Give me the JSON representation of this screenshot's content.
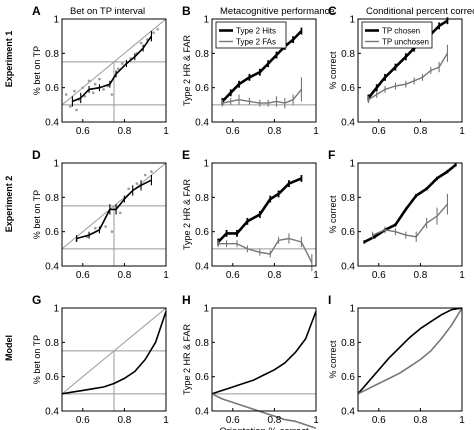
{
  "rows": [
    {
      "label": "Experiment 1"
    },
    {
      "label": "Experiment 2"
    },
    {
      "label": "Model"
    }
  ],
  "x_axis_label": "Orientation % correct",
  "chart_data": [
    {
      "id": "A",
      "letter": "A",
      "title": "Bet on TP interval",
      "type": "line",
      "ylabel": "% bet on TP",
      "xlim": [
        0.5,
        1.0
      ],
      "ylim": [
        0.4,
        1.0
      ],
      "xticks": [
        "0.6",
        "0.8",
        "1"
      ],
      "yticks": [
        "0.4",
        "0.6",
        "0.8",
        "1"
      ],
      "diagonal": true,
      "refs": {
        "x": 0.75,
        "y": [
          0.5,
          0.75
        ]
      },
      "series": [
        {
          "color": "#000000",
          "lw": 1.6,
          "x": [
            0.55,
            0.59,
            0.63,
            0.68,
            0.73,
            0.76,
            0.81,
            0.85,
            0.89,
            0.93
          ],
          "y": [
            0.52,
            0.54,
            0.59,
            0.6,
            0.62,
            0.68,
            0.74,
            0.78,
            0.83,
            0.9
          ],
          "err": [
            0.03,
            0.03,
            0.02,
            0.02,
            0.02,
            0.02,
            0.02,
            0.02,
            0.02,
            0.03
          ]
        }
      ],
      "scatter": {
        "x": [
          0.52,
          0.54,
          0.56,
          0.57,
          0.58,
          0.6,
          0.61,
          0.63,
          0.65,
          0.66,
          0.68,
          0.7,
          0.72,
          0.74,
          0.77,
          0.79,
          0.83,
          0.86,
          0.88,
          0.91,
          0.94,
          0.96
        ],
        "y": [
          0.56,
          0.49,
          0.58,
          0.47,
          0.53,
          0.6,
          0.55,
          0.64,
          0.57,
          0.62,
          0.65,
          0.59,
          0.61,
          0.56,
          0.71,
          0.74,
          0.77,
          0.8,
          0.86,
          0.88,
          0.92,
          0.94
        ]
      }
    },
    {
      "id": "B",
      "letter": "B",
      "title": "Metacognitive performance",
      "type": "line",
      "ylabel": "Type 2 HR & FAR",
      "xlim": [
        0.5,
        1.0
      ],
      "ylim": [
        0.4,
        1.0
      ],
      "xticks": [
        "0.6",
        "0.8",
        "1"
      ],
      "yticks": [
        "0.4",
        "0.6",
        "0.8",
        "1"
      ],
      "hline": 0.5,
      "legend": {
        "position": "top-left",
        "entries": [
          "Type 2 Hits",
          "Type 2 FAs"
        ]
      },
      "series": [
        {
          "name": "Type 2 Hits",
          "color": "#000000",
          "lw": 2.6,
          "x": [
            0.55,
            0.59,
            0.63,
            0.68,
            0.73,
            0.77,
            0.81,
            0.85,
            0.89,
            0.93
          ],
          "y": [
            0.52,
            0.57,
            0.62,
            0.66,
            0.69,
            0.74,
            0.79,
            0.84,
            0.88,
            0.93
          ],
          "err": [
            0.02,
            0.02,
            0.02,
            0.02,
            0.02,
            0.02,
            0.02,
            0.02,
            0.02,
            0.02
          ]
        },
        {
          "name": "Type 2 FAs",
          "color": "#777777",
          "lw": 1.4,
          "x": [
            0.55,
            0.59,
            0.63,
            0.68,
            0.73,
            0.77,
            0.81,
            0.85,
            0.89,
            0.93
          ],
          "y": [
            0.51,
            0.52,
            0.53,
            0.52,
            0.51,
            0.51,
            0.52,
            0.51,
            0.53,
            0.59
          ],
          "err": [
            0.02,
            0.02,
            0.03,
            0.02,
            0.02,
            0.02,
            0.03,
            0.03,
            0.03,
            0.07
          ]
        }
      ]
    },
    {
      "id": "C",
      "letter": "C",
      "title": "Conditional percent correct",
      "type": "line",
      "ylabel": "% correct",
      "xlim": [
        0.5,
        1.0
      ],
      "ylim": [
        0.4,
        1.0
      ],
      "xticks": [
        "0.6",
        "0.8",
        "1"
      ],
      "yticks": [
        "0.4",
        "0.6",
        "0.8",
        "1"
      ],
      "legend": {
        "position": "top-left",
        "entries": [
          "TP chosen",
          "TP unchosen"
        ]
      },
      "series": [
        {
          "name": "TP chosen",
          "color": "#000000",
          "lw": 2.6,
          "x": [
            0.55,
            0.59,
            0.63,
            0.68,
            0.73,
            0.77,
            0.81,
            0.85,
            0.89,
            0.93
          ],
          "y": [
            0.54,
            0.6,
            0.66,
            0.72,
            0.78,
            0.83,
            0.87,
            0.91,
            0.96,
            0.99
          ],
          "err": [
            0.02,
            0.02,
            0.02,
            0.02,
            0.02,
            0.02,
            0.02,
            0.02,
            0.02,
            0.02
          ]
        },
        {
          "name": "TP unchosen",
          "color": "#777777",
          "lw": 1.4,
          "x": [
            0.55,
            0.59,
            0.63,
            0.68,
            0.73,
            0.77,
            0.81,
            0.85,
            0.89,
            0.93
          ],
          "y": [
            0.53,
            0.56,
            0.59,
            0.61,
            0.62,
            0.64,
            0.66,
            0.7,
            0.72,
            0.8
          ],
          "err": [
            0.02,
            0.02,
            0.02,
            0.02,
            0.02,
            0.02,
            0.02,
            0.02,
            0.03,
            0.05
          ]
        }
      ]
    },
    {
      "id": "D",
      "letter": "D",
      "title": "",
      "type": "line",
      "ylabel": "% bet on TP",
      "xlim": [
        0.5,
        1.0
      ],
      "ylim": [
        0.4,
        1.0
      ],
      "xticks": [
        "0.6",
        "0.8",
        "1"
      ],
      "yticks": [
        "0.4",
        "0.6",
        "0.8",
        "1"
      ],
      "diagonal": true,
      "refs": {
        "x": 0.75,
        "y": [
          0.5,
          0.75
        ]
      },
      "series": [
        {
          "color": "#000000",
          "lw": 1.6,
          "x": [
            0.57,
            0.63,
            0.68,
            0.73,
            0.76,
            0.8,
            0.84,
            0.88,
            0.93
          ],
          "y": [
            0.56,
            0.58,
            0.61,
            0.73,
            0.73,
            0.79,
            0.84,
            0.87,
            0.9
          ],
          "err": [
            0.02,
            0.02,
            0.02,
            0.03,
            0.03,
            0.02,
            0.03,
            0.03,
            0.03
          ]
        }
      ],
      "scatter": {
        "x": [
          0.57,
          0.62,
          0.66,
          0.71,
          0.74,
          0.78,
          0.82,
          0.86,
          0.9,
          0.93
        ],
        "y": [
          0.55,
          0.57,
          0.62,
          0.63,
          0.6,
          0.71,
          0.85,
          0.88,
          0.93,
          0.95
        ]
      }
    },
    {
      "id": "E",
      "letter": "E",
      "title": "",
      "type": "line",
      "ylabel": "Type 2 HR & FAR",
      "xlim": [
        0.5,
        1.0
      ],
      "ylim": [
        0.4,
        1.0
      ],
      "xticks": [
        "0.6",
        "0.8",
        "1"
      ],
      "yticks": [
        "0.4",
        "0.6",
        "0.8",
        "1"
      ],
      "hline": 0.5,
      "series": [
        {
          "color": "#000000",
          "lw": 2.6,
          "x": [
            0.53,
            0.57,
            0.62,
            0.67,
            0.73,
            0.78,
            0.82,
            0.87,
            0.93
          ],
          "y": [
            0.54,
            0.59,
            0.59,
            0.66,
            0.7,
            0.79,
            0.82,
            0.88,
            0.91
          ],
          "err": [
            0.02,
            0.02,
            0.02,
            0.02,
            0.02,
            0.02,
            0.02,
            0.02,
            0.02
          ]
        },
        {
          "color": "#777777",
          "lw": 1.4,
          "x": [
            0.53,
            0.57,
            0.62,
            0.67,
            0.73,
            0.78,
            0.82,
            0.87,
            0.93,
            0.98
          ],
          "y": [
            0.53,
            0.53,
            0.53,
            0.5,
            0.48,
            0.47,
            0.55,
            0.56,
            0.54,
            0.42
          ],
          "err": [
            0.02,
            0.02,
            0.02,
            0.02,
            0.02,
            0.02,
            0.02,
            0.03,
            0.03,
            0.05
          ]
        }
      ]
    },
    {
      "id": "F",
      "letter": "F",
      "title": "",
      "type": "line",
      "ylabel": "% correct",
      "xlim": [
        0.5,
        1.0
      ],
      "ylim": [
        0.4,
        1.0
      ],
      "xticks": [
        "0.6",
        "0.8",
        "1"
      ],
      "yticks": [
        "0.4",
        "0.6",
        "0.8",
        "1"
      ],
      "series": [
        {
          "color": "#000000",
          "lw": 2.6,
          "x": [
            0.53,
            0.58,
            0.63,
            0.68,
            0.73,
            0.78,
            0.83,
            0.88,
            0.93,
            0.97
          ],
          "y": [
            0.54,
            0.57,
            0.61,
            0.64,
            0.73,
            0.81,
            0.85,
            0.91,
            0.95,
            0.99
          ],
          "err": [
            0.01,
            0.01,
            0.01,
            0.01,
            0.01,
            0.01,
            0.01,
            0.01,
            0.01,
            0.01
          ]
        },
        {
          "color": "#777777",
          "lw": 1.4,
          "x": [
            0.57,
            0.63,
            0.68,
            0.73,
            0.78,
            0.83,
            0.88,
            0.93
          ],
          "y": [
            0.58,
            0.61,
            0.6,
            0.58,
            0.57,
            0.65,
            0.69,
            0.76
          ],
          "err": [
            0.02,
            0.02,
            0.02,
            0.02,
            0.03,
            0.03,
            0.05,
            0.06
          ]
        }
      ]
    },
    {
      "id": "G",
      "letter": "G",
      "title": "",
      "type": "line",
      "ylabel": "% bet on TP",
      "xlim": [
        0.5,
        1.0
      ],
      "ylim": [
        0.4,
        1.0
      ],
      "xticks": [
        "0.6",
        "0.8",
        "1"
      ],
      "yticks": [
        "0.4",
        "0.6",
        "0.8",
        "1"
      ],
      "diagonal": true,
      "refs": {
        "x": 0.75,
        "y": [
          0.5,
          0.75
        ]
      },
      "series": [
        {
          "color": "#000000",
          "lw": 1.6,
          "x": [
            0.5,
            0.55,
            0.6,
            0.65,
            0.7,
            0.75,
            0.8,
            0.85,
            0.9,
            0.95,
            1.0
          ],
          "y": [
            0.5,
            0.51,
            0.52,
            0.53,
            0.54,
            0.56,
            0.59,
            0.63,
            0.7,
            0.8,
            0.98
          ]
        }
      ]
    },
    {
      "id": "H",
      "letter": "H",
      "title": "",
      "type": "line",
      "ylabel": "Type 2 HR & FAR",
      "xlim": [
        0.5,
        1.0
      ],
      "ylim": [
        0.4,
        1.0
      ],
      "xticks": [
        "0.6",
        "0.8",
        "1"
      ],
      "yticks": [
        "0.4",
        "0.6",
        "0.8",
        "1"
      ],
      "hline": 0.5,
      "xlabel": "Orientation % correct",
      "series": [
        {
          "color": "#000000",
          "lw": 1.6,
          "x": [
            0.5,
            0.55,
            0.6,
            0.65,
            0.7,
            0.75,
            0.8,
            0.85,
            0.9,
            0.95,
            1.0
          ],
          "y": [
            0.5,
            0.52,
            0.54,
            0.56,
            0.58,
            0.61,
            0.64,
            0.68,
            0.74,
            0.82,
            0.98
          ]
        },
        {
          "color": "#777777",
          "lw": 1.6,
          "x": [
            0.5,
            0.55,
            0.6,
            0.65,
            0.7,
            0.75,
            0.8,
            0.85,
            0.9,
            0.95,
            1.0
          ],
          "y": [
            0.5,
            0.47,
            0.45,
            0.43,
            0.41,
            0.39,
            0.37,
            0.35,
            0.34,
            0.32,
            0.3
          ]
        }
      ]
    },
    {
      "id": "I",
      "letter": "I",
      "title": "",
      "type": "line",
      "ylabel": "% correct",
      "xlim": [
        0.5,
        1.0
      ],
      "ylim": [
        0.4,
        1.0
      ],
      "xticks": [
        "0.6",
        "0.8",
        "1"
      ],
      "yticks": [
        "0.4",
        "0.6",
        "0.8",
        "1"
      ],
      "series": [
        {
          "color": "#000000",
          "lw": 1.6,
          "x": [
            0.5,
            0.55,
            0.6,
            0.65,
            0.7,
            0.75,
            0.8,
            0.85,
            0.9,
            0.95,
            1.0
          ],
          "y": [
            0.5,
            0.57,
            0.64,
            0.71,
            0.77,
            0.83,
            0.88,
            0.92,
            0.96,
            0.99,
            1.0
          ]
        },
        {
          "color": "#777777",
          "lw": 1.6,
          "x": [
            0.5,
            0.55,
            0.6,
            0.65,
            0.7,
            0.75,
            0.8,
            0.85,
            0.9,
            0.95,
            1.0
          ],
          "y": [
            0.5,
            0.53,
            0.56,
            0.59,
            0.62,
            0.66,
            0.7,
            0.75,
            0.82,
            0.9,
            1.0
          ]
        }
      ]
    }
  ]
}
